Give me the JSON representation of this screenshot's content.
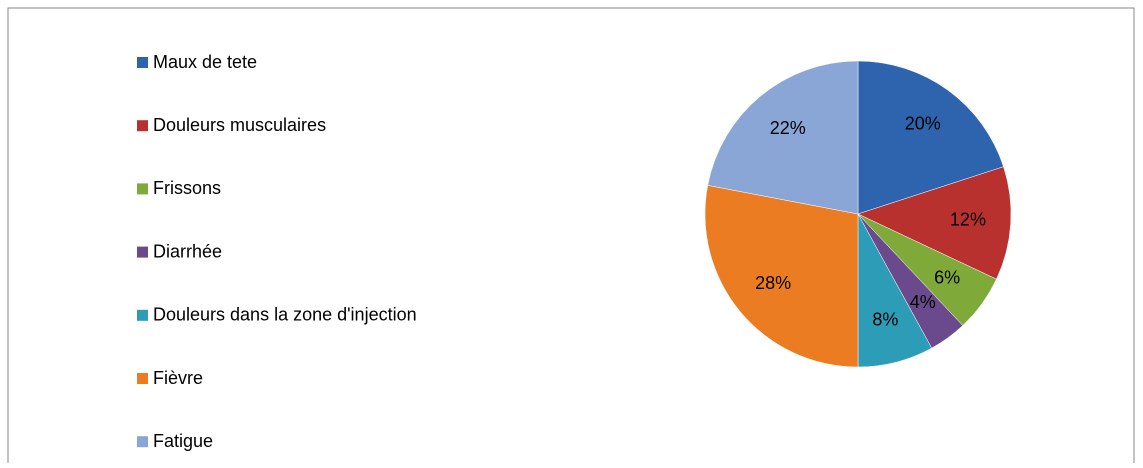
{
  "chart_data": {
    "type": "pie",
    "categories": [
      "Maux de tete",
      "Douleurs musculaires",
      "Frissons",
      "Diarrhée",
      "Douleurs dans la zone d'injection",
      "Fièvre",
      "Fatigue"
    ],
    "values": [
      20,
      12,
      6,
      4,
      8,
      28,
      22
    ],
    "value_labels": [
      "20%",
      "12%",
      "6%",
      "4%",
      "8%",
      "28%",
      "22%"
    ],
    "colors": [
      "#2e64ad",
      "#b8312e",
      "#7faa3a",
      "#6a4a8c",
      "#2d9cb6",
      "#ec7c22",
      "#8aa6d6"
    ],
    "legend": "left"
  }
}
